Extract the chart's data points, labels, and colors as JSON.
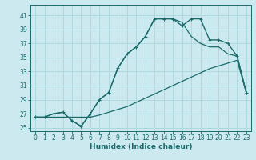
{
  "xlabel": "Humidex (Indice chaleur)",
  "bg_color": "#cbe9ef",
  "grid_color": "#b0d8e0",
  "line_color": "#1a6b6b",
  "xlim": [
    -0.5,
    23.5
  ],
  "ylim": [
    24.5,
    42.5
  ],
  "xticks": [
    0,
    1,
    2,
    3,
    4,
    5,
    6,
    7,
    8,
    9,
    10,
    11,
    12,
    13,
    14,
    15,
    16,
    17,
    18,
    19,
    20,
    21,
    22,
    23
  ],
  "yticks": [
    25,
    27,
    29,
    31,
    33,
    35,
    37,
    39,
    41
  ],
  "hours": [
    0,
    1,
    2,
    3,
    4,
    5,
    6,
    7,
    8,
    9,
    10,
    11,
    12,
    13,
    14,
    15,
    16,
    17,
    18,
    19,
    20,
    21,
    22,
    23
  ],
  "humidex_main": [
    26.5,
    26.5,
    27.0,
    27.2,
    26.0,
    25.2,
    27.0,
    29.0,
    30.0,
    33.5,
    35.5,
    36.5,
    38.0,
    40.5,
    40.5,
    40.5,
    39.5,
    40.5,
    40.5,
    37.5,
    37.5,
    37.0,
    35.2,
    30.0
  ],
  "humidex_upper": [
    26.5,
    26.5,
    27.0,
    27.2,
    26.0,
    25.2,
    27.0,
    29.0,
    30.0,
    33.5,
    35.5,
    36.5,
    38.0,
    40.5,
    40.5,
    40.5,
    40.0,
    38.0,
    37.0,
    36.5,
    36.5,
    35.5,
    35.2,
    30.0
  ],
  "humidex_lower": [
    26.5,
    26.5,
    26.5,
    26.5,
    26.5,
    26.5,
    26.5,
    26.8,
    27.2,
    27.6,
    28.0,
    28.6,
    29.2,
    29.8,
    30.4,
    31.0,
    31.6,
    32.2,
    32.8,
    33.4,
    33.8,
    34.2,
    34.6,
    30.0
  ]
}
